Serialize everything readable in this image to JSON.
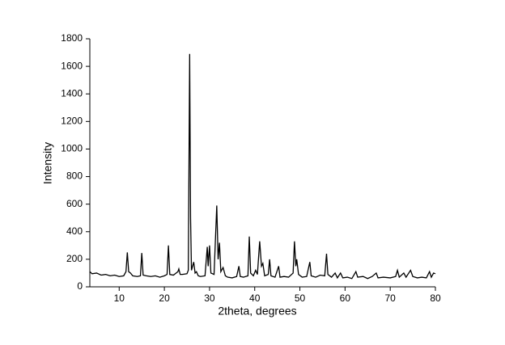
{
  "chart_data": {
    "type": "line",
    "x_label": "2theta, degrees",
    "y_label": "Intensity",
    "xlim": [
      3.5,
      80
    ],
    "xticks": [
      10,
      20,
      30,
      40,
      50,
      60,
      70,
      80
    ],
    "ylim": [
      0,
      1800
    ],
    "yticks": [
      0,
      200,
      400,
      600,
      800,
      1000,
      1200,
      1400,
      1600,
      1800
    ],
    "color": "#000000",
    "x": [
      3.5,
      4,
      5,
      6,
      7,
      8,
      9,
      10,
      11,
      11.5,
      11.8,
      12.1,
      12.5,
      13,
      14,
      14.7,
      15,
      15.3,
      16,
      17,
      18,
      19,
      20,
      20.6,
      20.9,
      21.2,
      22,
      23,
      23.2,
      23.5,
      24,
      25,
      25.3,
      25.6,
      25.8,
      26,
      26.5,
      26.8,
      27.1,
      27.5,
      28,
      29,
      29.5,
      29.7,
      30,
      30.3,
      31,
      31.6,
      31.9,
      32.2,
      32.5,
      33,
      33.5,
      34,
      35,
      36,
      36.5,
      36.8,
      37.5,
      38.5,
      38.8,
      39.1,
      39.7,
      40.2,
      40.6,
      41.1,
      41.5,
      41.8,
      42.2,
      43,
      43.3,
      43.6,
      44.5,
      45.3,
      45.6,
      46.5,
      47.5,
      48.5,
      48.8,
      49.1,
      49.3,
      49.7,
      50.5,
      51.5,
      52.2,
      52.5,
      53.5,
      54.5,
      55.5,
      55.9,
      56.2,
      57,
      57.8,
      58.3,
      59,
      59.5,
      60.5,
      61.5,
      62.4,
      62.8,
      64,
      65,
      66,
      66.9,
      67.3,
      68.5,
      70,
      71.2,
      71.6,
      72,
      73,
      73.5,
      74.5,
      75,
      76,
      77,
      78,
      78.7,
      79.1,
      79.6,
      80
    ],
    "values": [
      110,
      95,
      100,
      85,
      90,
      80,
      85,
      75,
      80,
      110,
      250,
      110,
      100,
      80,
      75,
      80,
      245,
      85,
      80,
      75,
      80,
      70,
      80,
      90,
      300,
      90,
      85,
      110,
      130,
      90,
      90,
      95,
      120,
      1690,
      500,
      120,
      180,
      100,
      110,
      80,
      75,
      80,
      290,
      150,
      300,
      100,
      90,
      590,
      200,
      320,
      110,
      140,
      80,
      70,
      65,
      75,
      150,
      75,
      70,
      80,
      365,
      100,
      80,
      120,
      90,
      330,
      150,
      170,
      80,
      90,
      200,
      80,
      70,
      150,
      70,
      75,
      70,
      100,
      330,
      150,
      200,
      90,
      70,
      75,
      180,
      80,
      70,
      85,
      80,
      240,
      90,
      70,
      100,
      65,
      100,
      65,
      70,
      60,
      110,
      70,
      75,
      60,
      75,
      100,
      65,
      70,
      65,
      75,
      120,
      70,
      100,
      70,
      120,
      75,
      65,
      70,
      65,
      110,
      70,
      100,
      95
    ]
  }
}
